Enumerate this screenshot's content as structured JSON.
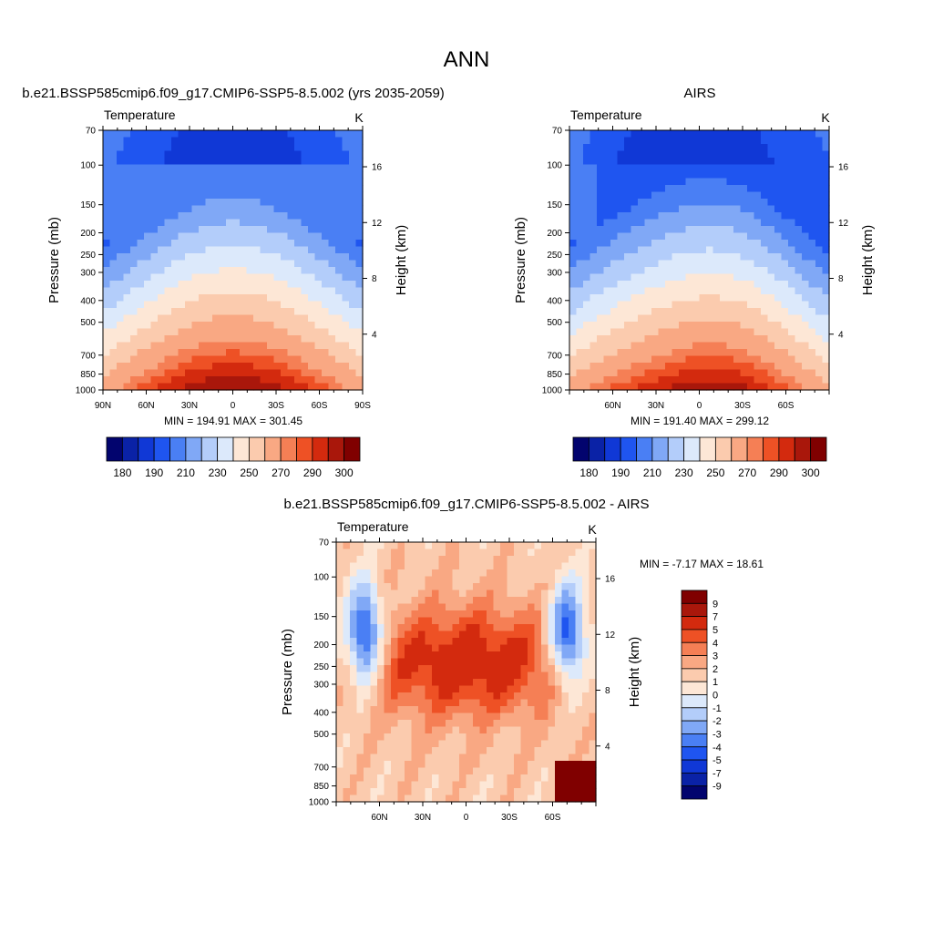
{
  "page_title": "ANN",
  "colors": {
    "temp_palette": [
      "#02046e",
      "#0a22a6",
      "#1038d6",
      "#1f55f0",
      "#4a7ff4",
      "#80a8f6",
      "#b3cdfa",
      "#dce9fb",
      "#fde7d6",
      "#fbcbae",
      "#f9a883",
      "#f57f55",
      "#ee5125",
      "#d32a0e",
      "#a9170b",
      "#800000"
    ],
    "diff_palette": [
      "#02046e",
      "#0a22a6",
      "#1038d6",
      "#1f55f0",
      "#4a7ff4",
      "#80a8f6",
      "#b3cdfa",
      "#dce9fb",
      "#fde7d6",
      "#fbcbae",
      "#f9a883",
      "#f57f55",
      "#ee5125",
      "#d32a0e",
      "#a9170b",
      "#800000"
    ]
  },
  "chart_data": [
    {
      "type": "heatmap",
      "id": "model",
      "title": "b.e21.BSSP585cmip6.f09_g17.CMIP6-SSP5-8.5.002 (yrs 2035-2059)",
      "left_string": "Temperature",
      "right_string": "K",
      "ylabel": "Pressure (mb)",
      "ylabel_right": "Height (km)",
      "ytick_labels": [
        "70",
        "100",
        "150",
        "200",
        "250",
        "300",
        "400",
        "500",
        "700",
        "850",
        "1000"
      ],
      "ytick_values": [
        70,
        100,
        150,
        200,
        250,
        300,
        400,
        500,
        700,
        850,
        1000
      ],
      "ytick_right_labels": [
        "4",
        "8",
        "12",
        "16"
      ],
      "ytick_right_values": [
        4,
        8,
        12,
        16
      ],
      "xtick_labels": [
        "90N",
        "60N",
        "30N",
        "0",
        "30S",
        "60S",
        "90S"
      ],
      "xtick_values": [
        90,
        60,
        30,
        0,
        -30,
        -60,
        -90
      ],
      "xlim": [
        90,
        -90
      ],
      "ylim": [
        1000,
        70
      ],
      "stats": "MIN = 194.91  MAX = 301.45",
      "min": 194.91,
      "max": 301.45,
      "colorbar_labels": [
        "180",
        "190",
        "210",
        "230",
        "250",
        "270",
        "290",
        "300"
      ]
    },
    {
      "type": "heatmap",
      "id": "obs",
      "title": "AIRS",
      "left_string": "Temperature",
      "right_string": "K",
      "ylabel": "Pressure (mb)",
      "ylabel_right": "Height (km)",
      "ytick_labels": [
        "70",
        "100",
        "150",
        "200",
        "250",
        "300",
        "400",
        "500",
        "700",
        "850",
        "1000"
      ],
      "ytick_values": [
        70,
        100,
        150,
        200,
        250,
        300,
        400,
        500,
        700,
        850,
        1000
      ],
      "ytick_right_labels": [
        "4",
        "8",
        "12",
        "16"
      ],
      "ytick_right_values": [
        4,
        8,
        12,
        16
      ],
      "xtick_labels": [
        "60N",
        "30N",
        "0",
        "30S",
        "60S"
      ],
      "xtick_values": [
        60,
        30,
        0,
        -30,
        -60
      ],
      "xlim": [
        90,
        -90
      ],
      "ylim": [
        1000,
        70
      ],
      "stats": "MIN = 191.40  MAX = 299.12",
      "min": 191.4,
      "max": 299.12,
      "colorbar_labels": [
        "180",
        "190",
        "210",
        "230",
        "250",
        "270",
        "290",
        "300"
      ]
    },
    {
      "type": "heatmap",
      "id": "diff",
      "title": "b.e21.BSSP585cmip6.f09_g17.CMIP6-SSP5-8.5.002 - AIRS",
      "left_string": "Temperature",
      "right_string": "K",
      "ylabel": "Pressure (mb)",
      "ylabel_right": "Height (km)",
      "ytick_labels": [
        "70",
        "100",
        "150",
        "200",
        "250",
        "300",
        "400",
        "500",
        "700",
        "850",
        "1000"
      ],
      "ytick_values": [
        70,
        100,
        150,
        200,
        250,
        300,
        400,
        500,
        700,
        850,
        1000
      ],
      "ytick_right_labels": [
        "4",
        "8",
        "12",
        "16"
      ],
      "ytick_right_values": [
        4,
        8,
        12,
        16
      ],
      "xtick_labels": [
        "60N",
        "30N",
        "0",
        "30S",
        "60S"
      ],
      "xtick_values": [
        60,
        30,
        0,
        -30,
        -60
      ],
      "xlim": [
        90,
        -90
      ],
      "ylim": [
        1000,
        70
      ],
      "stats": "MIN =  -7.17  MAX =  18.61",
      "min": -7.17,
      "max": 18.61,
      "colorbar_labels": [
        "9",
        "7",
        "5",
        "4",
        "3",
        "2",
        "1",
        "0",
        "-1",
        "-2",
        "-3",
        "-4",
        "-5",
        "-7",
        "-9"
      ]
    }
  ]
}
